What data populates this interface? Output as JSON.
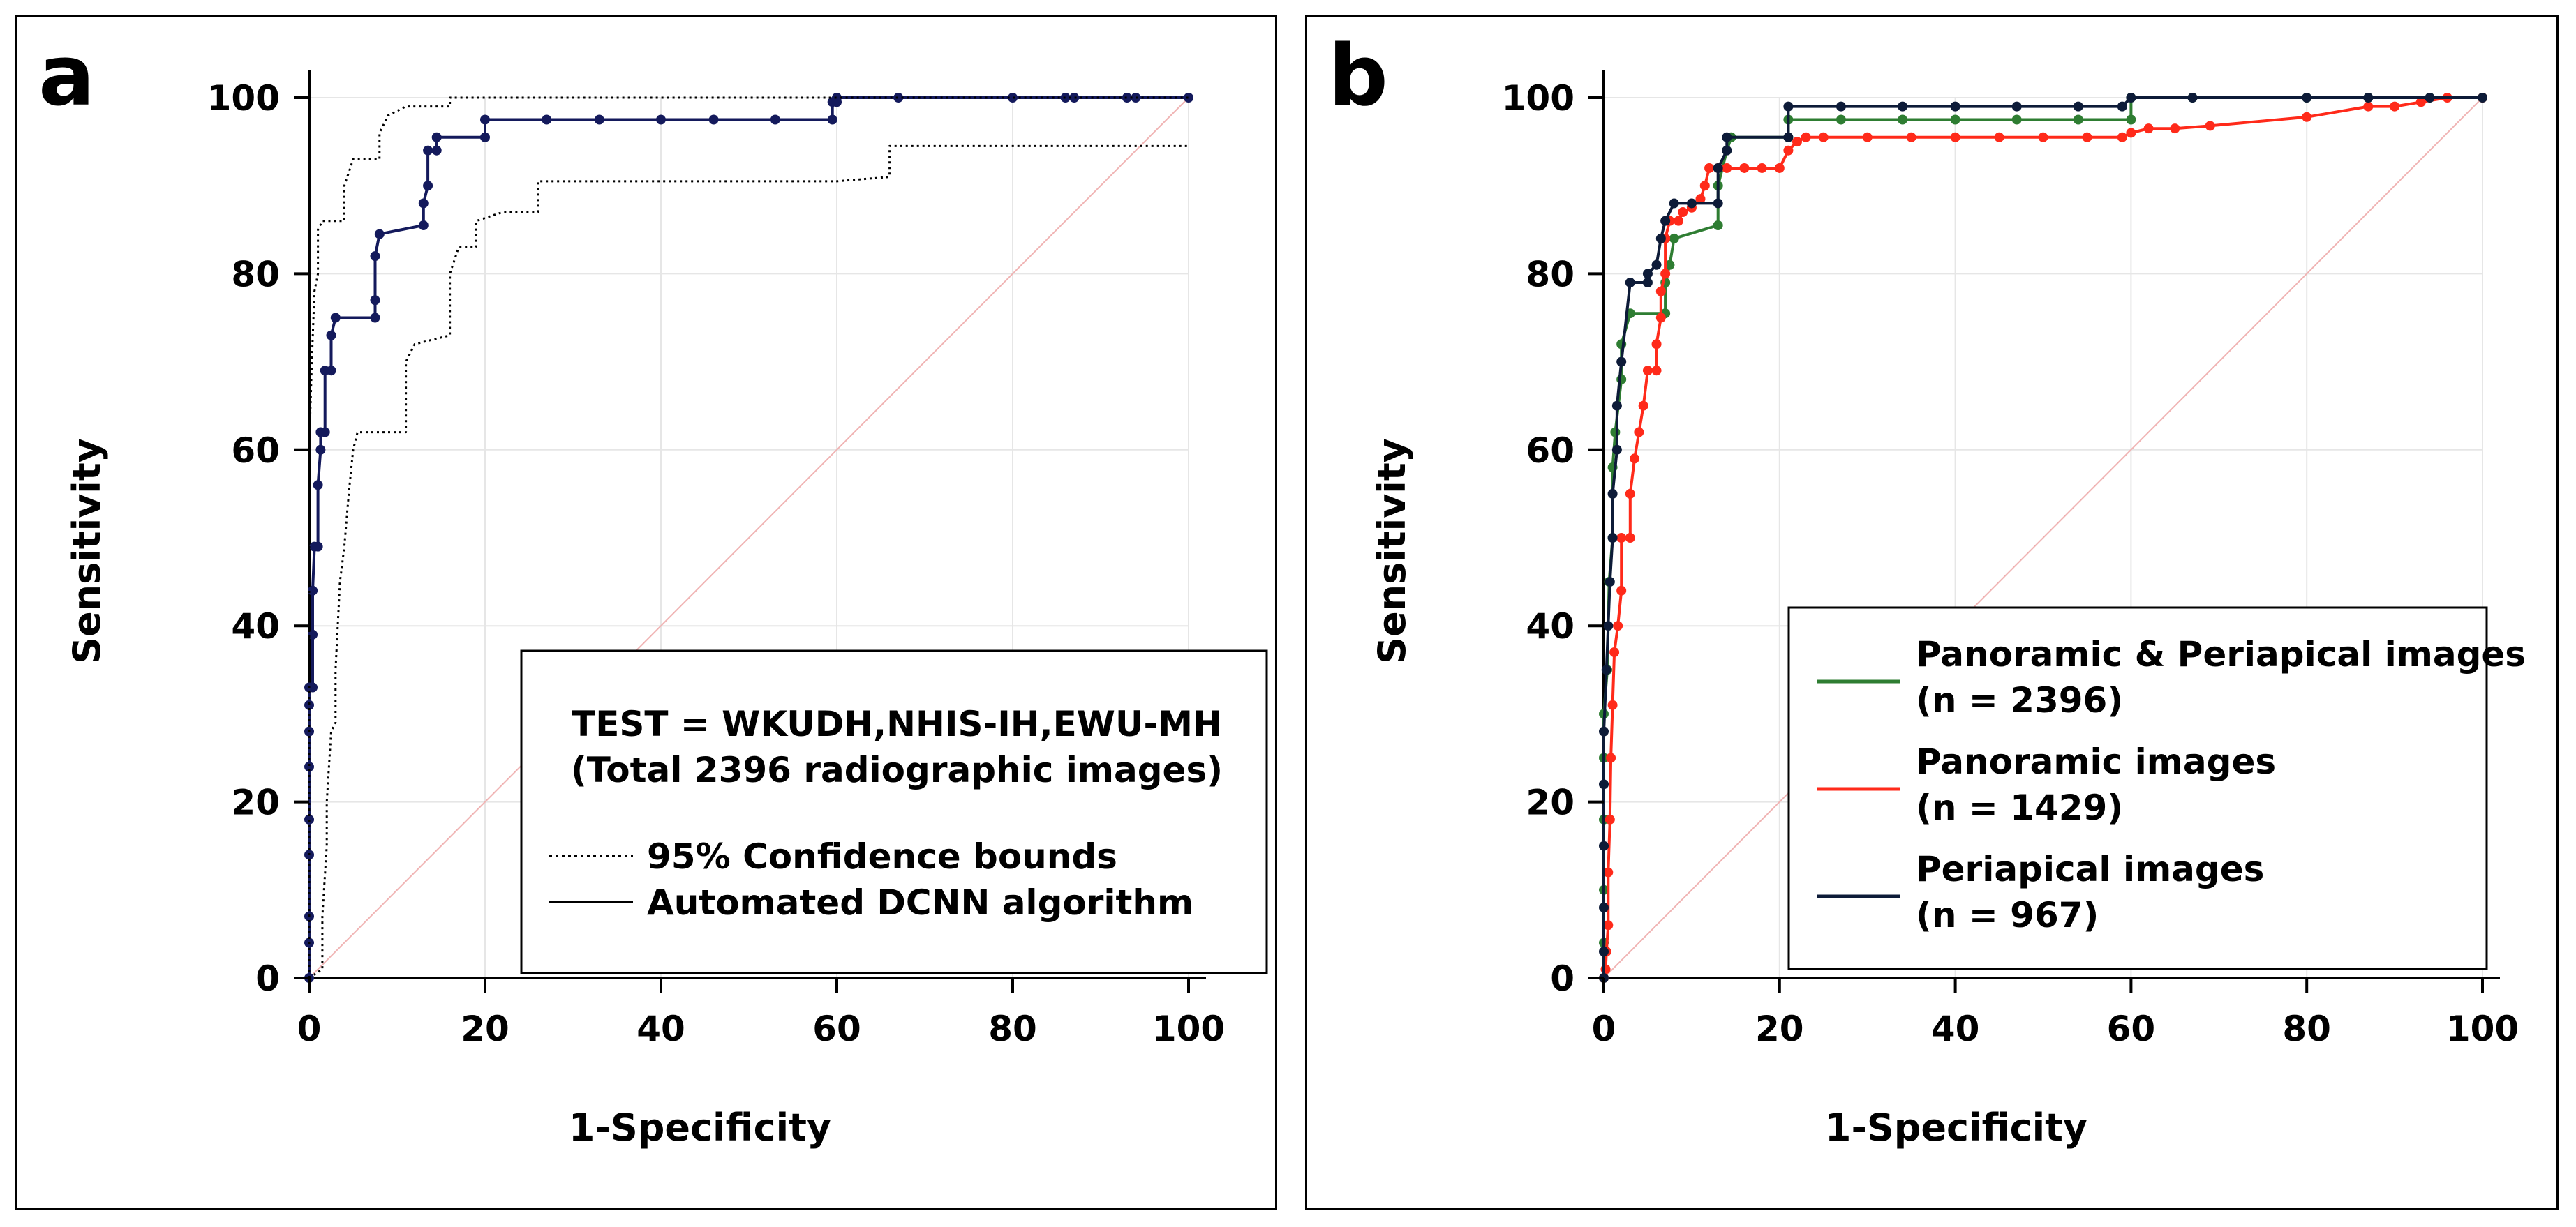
{
  "chart_data": [
    {
      "type": "line",
      "panel_label": "a",
      "xlabel": "1-Specificity",
      "ylabel": "Sensitivity",
      "xlim": [
        0,
        100
      ],
      "ylim": [
        0,
        100
      ],
      "xticks": [
        0,
        20,
        40,
        60,
        80,
        100
      ],
      "yticks": [
        0,
        20,
        40,
        60,
        80,
        100
      ],
      "grid": true,
      "legend_title": [
        "TEST = WKUDH,NHIS-IH,EWU-MH",
        "(Total 2396 radiographic images)"
      ],
      "legend": [
        "95% Confidence bounds",
        "Automated DCNN algorithm"
      ],
      "legend_position": "bottom-right",
      "colors": {
        "roc": "#141a5c",
        "bounds": "#000000",
        "diagonal": "#f0b4b4",
        "grid": "#e6e6e6"
      },
      "series": [
        {
          "name": "Automated DCNN algorithm",
          "style": "solid-markers",
          "points": [
            [
              0,
              0
            ],
            [
              0,
              4
            ],
            [
              0,
              7
            ],
            [
              0,
              14
            ],
            [
              0,
              18
            ],
            [
              0,
              24
            ],
            [
              0,
              28
            ],
            [
              0,
              31
            ],
            [
              0,
              33
            ],
            [
              0.4,
              33
            ],
            [
              0.4,
              39
            ],
            [
              0.4,
              44
            ],
            [
              0.6,
              49
            ],
            [
              1,
              49
            ],
            [
              1,
              56
            ],
            [
              1.3,
              60
            ],
            [
              1.3,
              62
            ],
            [
              1.8,
              62
            ],
            [
              1.8,
              69
            ],
            [
              2.5,
              69
            ],
            [
              2.5,
              73
            ],
            [
              3,
              75
            ],
            [
              7.5,
              75
            ],
            [
              7.5,
              77
            ],
            [
              7.5,
              82
            ],
            [
              8,
              84.5
            ],
            [
              13,
              85.5
            ],
            [
              13,
              88
            ],
            [
              13.5,
              90
            ],
            [
              13.5,
              94
            ],
            [
              14.5,
              94
            ],
            [
              14.5,
              95.5
            ],
            [
              20,
              95.5
            ],
            [
              20,
              97.5
            ],
            [
              27,
              97.5
            ],
            [
              33,
              97.5
            ],
            [
              40,
              97.5
            ],
            [
              46,
              97.5
            ],
            [
              53,
              97.5
            ],
            [
              59.5,
              97.5
            ],
            [
              59.5,
              99.5
            ],
            [
              60,
              99.5
            ],
            [
              60,
              100
            ],
            [
              67,
              100
            ],
            [
              80,
              100
            ],
            [
              86,
              100
            ],
            [
              87,
              100
            ],
            [
              93,
              100
            ],
            [
              94,
              100
            ],
            [
              100,
              100
            ]
          ]
        },
        {
          "name": "95% Confidence bounds (upper)",
          "style": "dotted",
          "points": [
            [
              0,
              0
            ],
            [
              0,
              60
            ],
            [
              0.3,
              70
            ],
            [
              0.6,
              78
            ],
            [
              1,
              80
            ],
            [
              1,
              85
            ],
            [
              1.5,
              86
            ],
            [
              4,
              86
            ],
            [
              4,
              90
            ],
            [
              5,
              93
            ],
            [
              8,
              93
            ],
            [
              8,
              96
            ],
            [
              9,
              98
            ],
            [
              11,
              99
            ],
            [
              16,
              99
            ],
            [
              16,
              100
            ],
            [
              100,
              100
            ]
          ]
        },
        {
          "name": "95% Confidence bounds (lower)",
          "style": "dotted",
          "points": [
            [
              0,
              0
            ],
            [
              1.5,
              1
            ],
            [
              1.5,
              7
            ],
            [
              2,
              15
            ],
            [
              2,
              20
            ],
            [
              2.5,
              28
            ],
            [
              3,
              29
            ],
            [
              3,
              35
            ],
            [
              3.5,
              45
            ],
            [
              4,
              49
            ],
            [
              4.5,
              55
            ],
            [
              5,
              60
            ],
            [
              5.5,
              62
            ],
            [
              11,
              62
            ],
            [
              11,
              70
            ],
            [
              12,
              72
            ],
            [
              16,
              73
            ],
            [
              16,
              80
            ],
            [
              17,
              83
            ],
            [
              19,
              83
            ],
            [
              19,
              86
            ],
            [
              22,
              87
            ],
            [
              26,
              87
            ],
            [
              26,
              90.5
            ],
            [
              60,
              90.5
            ],
            [
              66,
              91
            ],
            [
              66,
              94.5
            ],
            [
              100,
              94.5
            ]
          ]
        }
      ]
    },
    {
      "type": "line",
      "panel_label": "b",
      "xlabel": "1-Specificity",
      "ylabel": "Sensitivity",
      "xlim": [
        0,
        100
      ],
      "ylim": [
        0,
        100
      ],
      "xticks": [
        0,
        20,
        40,
        60,
        80,
        100
      ],
      "yticks": [
        0,
        20,
        40,
        60,
        80,
        100
      ],
      "grid": true,
      "legend": [
        {
          "label": "Panoramic & Periapical images",
          "n": "(n = 2396)"
        },
        {
          "label": "Panoramic images",
          "n": "(n = 1429)"
        },
        {
          "label": "Periapical images",
          "n": "(n = 967)"
        }
      ],
      "legend_position": "bottom-right",
      "colors": {
        "diagonal": "#f0b4b4",
        "grid": "#e6e6e6"
      },
      "series": [
        {
          "name": "Panoramic & Periapical images",
          "color": "#2e7d32",
          "points": [
            [
              0,
              0
            ],
            [
              0,
              4
            ],
            [
              0,
              10
            ],
            [
              0,
              18
            ],
            [
              0,
              25
            ],
            [
              0,
              30
            ],
            [
              0.4,
              35
            ],
            [
              0.6,
              45
            ],
            [
              1,
              50
            ],
            [
              1,
              58
            ],
            [
              1.3,
              62
            ],
            [
              2,
              68
            ],
            [
              2,
              72
            ],
            [
              3,
              75.5
            ],
            [
              7,
              75.5
            ],
            [
              7,
              79
            ],
            [
              7.5,
              81
            ],
            [
              8,
              84
            ],
            [
              13,
              85.5
            ],
            [
              13,
              90
            ],
            [
              14,
              94
            ],
            [
              14.5,
              95.5
            ],
            [
              21,
              95.5
            ],
            [
              21,
              97.5
            ],
            [
              27,
              97.5
            ],
            [
              34,
              97.5
            ],
            [
              40,
              97.5
            ],
            [
              47,
              97.5
            ],
            [
              54,
              97.5
            ],
            [
              60,
              97.5
            ],
            [
              60,
              100
            ],
            [
              67,
              100
            ],
            [
              80,
              100
            ],
            [
              87,
              100
            ],
            [
              94,
              100
            ],
            [
              100,
              100
            ]
          ]
        },
        {
          "name": "Panoramic images",
          "color": "#ff2a1a",
          "points": [
            [
              0,
              0
            ],
            [
              0.2,
              1
            ],
            [
              0.3,
              3
            ],
            [
              0.5,
              6
            ],
            [
              0.5,
              12
            ],
            [
              0.7,
              18
            ],
            [
              0.8,
              25
            ],
            [
              1,
              31
            ],
            [
              1.2,
              37
            ],
            [
              1.6,
              40
            ],
            [
              2,
              44
            ],
            [
              2,
              50
            ],
            [
              3,
              50
            ],
            [
              3,
              55
            ],
            [
              3.5,
              59
            ],
            [
              4,
              62
            ],
            [
              4.5,
              65
            ],
            [
              5,
              69
            ],
            [
              6,
              69
            ],
            [
              6,
              72
            ],
            [
              6.5,
              75
            ],
            [
              6.5,
              78
            ],
            [
              7,
              80
            ],
            [
              7,
              84
            ],
            [
              7.5,
              86
            ],
            [
              8.5,
              86
            ],
            [
              9,
              87
            ],
            [
              10,
              87.5
            ],
            [
              11,
              88.5
            ],
            [
              11.5,
              90
            ],
            [
              12,
              92
            ],
            [
              13,
              92
            ],
            [
              14,
              92
            ],
            [
              16,
              92
            ],
            [
              18,
              92
            ],
            [
              20,
              92
            ],
            [
              21,
              94
            ],
            [
              22,
              95
            ],
            [
              23,
              95.5
            ],
            [
              25,
              95.5
            ],
            [
              30,
              95.5
            ],
            [
              35,
              95.5
            ],
            [
              40,
              95.5
            ],
            [
              45,
              95.5
            ],
            [
              50,
              95.5
            ],
            [
              55,
              95.5
            ],
            [
              59,
              95.5
            ],
            [
              60,
              96
            ],
            [
              62,
              96.5
            ],
            [
              65,
              96.5
            ],
            [
              69,
              96.8
            ],
            [
              80,
              97.8
            ],
            [
              87,
              99
            ],
            [
              90,
              99
            ],
            [
              93,
              99.5
            ],
            [
              96,
              100
            ],
            [
              100,
              100
            ]
          ]
        },
        {
          "name": "Periapical images",
          "color": "#0d1b38",
          "points": [
            [
              0,
              0
            ],
            [
              0,
              3
            ],
            [
              0,
              8
            ],
            [
              0,
              15
            ],
            [
              0,
              22
            ],
            [
              0,
              28
            ],
            [
              0.3,
              35
            ],
            [
              0.5,
              40
            ],
            [
              0.7,
              45
            ],
            [
              1,
              50
            ],
            [
              1,
              55
            ],
            [
              1.5,
              60
            ],
            [
              1.5,
              65
            ],
            [
              2,
              70
            ],
            [
              3,
              79
            ],
            [
              5,
              79
            ],
            [
              5,
              80
            ],
            [
              6,
              81
            ],
            [
              6.5,
              84
            ],
            [
              7,
              86
            ],
            [
              8,
              88
            ],
            [
              10,
              88
            ],
            [
              13,
              88
            ],
            [
              13,
              92
            ],
            [
              14,
              94
            ],
            [
              14,
              95.5
            ],
            [
              21,
              95.5
            ],
            [
              21,
              99
            ],
            [
              27,
              99
            ],
            [
              34,
              99
            ],
            [
              40,
              99
            ],
            [
              47,
              99
            ],
            [
              54,
              99
            ],
            [
              59,
              99
            ],
            [
              60,
              100
            ],
            [
              67,
              100
            ],
            [
              80,
              100
            ],
            [
              87,
              100
            ],
            [
              94,
              100
            ],
            [
              100,
              100
            ]
          ]
        }
      ]
    }
  ]
}
